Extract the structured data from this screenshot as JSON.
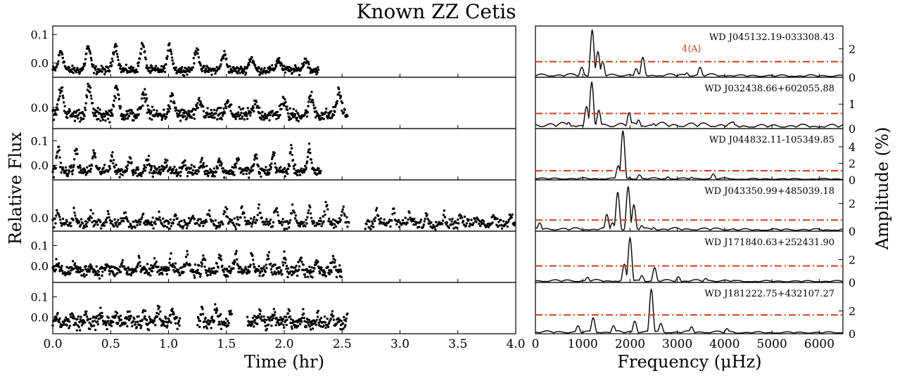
{
  "title": "Known ZZ Cetis",
  "left_ylabel": "Relative Flux",
  "right_ylabel": "Amplitude (%)",
  "chart_data": [
    {
      "type": "scatter",
      "name": "light curves",
      "xlabel": "Time (hr)",
      "xlim": [
        0.0,
        4.0
      ],
      "xticks": [
        0.0,
        0.5,
        1.0,
        1.5,
        2.0,
        2.5,
        3.0,
        3.5,
        4.0
      ],
      "xtick_labels": [
        "0.0",
        "0.5",
        "1.0",
        "1.5",
        "2.0",
        "2.5",
        "3.0",
        "3.5",
        "4.0"
      ],
      "panels": [
        {
          "ylim": [
            -0.05,
            0.13
          ],
          "yticks": [
            0.0,
            0.1
          ],
          "ytick_labels": [
            "0.0",
            "0.1"
          ],
          "t_end": 2.3,
          "period_hr": 0.235,
          "amp": 0.09,
          "noise": 0.012
        },
        {
          "ylim": [
            -0.07,
            0.1
          ],
          "yticks": [
            0.0
          ],
          "ytick_labels": [
            "0.0"
          ],
          "t_end": 2.55,
          "period_hr": 0.24,
          "amp": 0.09,
          "noise": 0.018
        },
        {
          "ylim": [
            -0.06,
            0.15
          ],
          "yticks": [
            0.0,
            0.1
          ],
          "ytick_labels": [
            "0.0",
            "0.1"
          ],
          "t_end": 2.32,
          "period_hr": 0.155,
          "amp": 0.1,
          "noise": 0.018
        },
        {
          "ylim": [
            -0.06,
            0.17
          ],
          "yticks": [
            0.0
          ],
          "ytick_labels": [
            "0.0"
          ],
          "t_end": 4.0,
          "gap": [
            2.56,
            2.7
          ],
          "period_hr": 0.145,
          "amp": 0.08,
          "noise": 0.02
        },
        {
          "ylim": [
            -0.08,
            0.17
          ],
          "yticks": [
            0.0,
            0.1
          ],
          "ytick_labels": [
            "0.0",
            "0.1"
          ],
          "t_end": 2.5,
          "period_hr": 0.14,
          "amp": 0.08,
          "noise": 0.025
        },
        {
          "ylim": [
            -0.08,
            0.17
          ],
          "yticks": [
            0.0,
            0.1
          ],
          "ytick_labels": [
            "0.0",
            "0.1"
          ],
          "t_end": 2.55,
          "period_hr": 0.125,
          "amp": 0.07,
          "noise": 0.03
        }
      ]
    },
    {
      "type": "line",
      "name": "periodograms",
      "xlabel": "Frequency (μHz)",
      "xlim": [
        0,
        6500
      ],
      "xticks": [
        0,
        1000,
        2000,
        3000,
        4000,
        5000,
        6000
      ],
      "xtick_labels": [
        "0",
        "1000",
        "2000",
        "3000",
        "4000",
        "5000",
        "6000"
      ],
      "threshold_label": "4⟨A⟩",
      "panels": [
        {
          "star": "WD J045132.19-033308.43",
          "ylim": [
            0,
            3.6
          ],
          "yticks": [
            0,
            2
          ],
          "ytick_labels": [
            "0",
            "2"
          ],
          "threshold": 1.1,
          "peaks": [
            [
              1200,
              3.3
            ],
            [
              1320,
              1.8
            ],
            [
              1420,
              1.1
            ],
            [
              980,
              0.7
            ],
            [
              2270,
              1.4
            ],
            [
              2130,
              0.6
            ],
            [
              3480,
              0.7
            ],
            [
              3200,
              0.3
            ],
            [
              3750,
              0.25
            ]
          ]
        },
        {
          "star": "WD J032438.66+602055.88",
          "ylim": [
            0,
            2.1
          ],
          "yticks": [
            0,
            1
          ],
          "ytick_labels": [
            "0",
            "1"
          ],
          "threshold": 0.62,
          "peaks": [
            [
              1190,
              1.9
            ],
            [
              1080,
              0.9
            ],
            [
              1340,
              0.75
            ],
            [
              1980,
              0.65
            ],
            [
              2180,
              0.35
            ],
            [
              2500,
              0.2
            ],
            [
              700,
              0.25
            ]
          ]
        },
        {
          "star": "WD J044832.11-105349.85",
          "ylim": [
            0,
            6.2
          ],
          "yticks": [
            0,
            2,
            4
          ],
          "ytick_labels": [
            "0",
            "2",
            "4"
          ],
          "threshold": 1.1,
          "peaks": [
            [
              1850,
              5.9
            ],
            [
              1750,
              1.7
            ],
            [
              2200,
              0.6
            ],
            [
              3760,
              0.7
            ],
            [
              2800,
              0.35
            ],
            [
              3300,
              0.3
            ]
          ]
        },
        {
          "star": "WD J043350.99+485039.18",
          "ylim": [
            0,
            3.7
          ],
          "yticks": [
            0,
            2
          ],
          "ytick_labels": [
            "0",
            "2"
          ],
          "threshold": 0.8,
          "peaks": [
            [
              1960,
              3.2
            ],
            [
              1740,
              2.8
            ],
            [
              2080,
              1.9
            ],
            [
              1510,
              1.2
            ],
            [
              1630,
              0.6
            ],
            [
              2250,
              0.4
            ],
            [
              90,
              0.6
            ],
            [
              2500,
              0.25
            ]
          ]
        },
        {
          "star": "WD J171840.63+252431.90",
          "ylim": [
            0,
            4.5
          ],
          "yticks": [
            0,
            2
          ],
          "ytick_labels": [
            "0",
            "2"
          ],
          "threshold": 1.45,
          "peaks": [
            [
              2000,
              3.9
            ],
            [
              1880,
              1.6
            ],
            [
              2520,
              1.3
            ],
            [
              2250,
              0.6
            ],
            [
              3020,
              0.5
            ],
            [
              3600,
              0.35
            ],
            [
              1100,
              0.45
            ]
          ]
        },
        {
          "star": "WD J181222.75+432107.27",
          "ylim": [
            0,
            4.5
          ],
          "yticks": [
            0,
            2
          ],
          "ytick_labels": [
            "0",
            "2"
          ],
          "threshold": 1.65,
          "peaks": [
            [
              2450,
              3.9
            ],
            [
              1220,
              1.4
            ],
            [
              2100,
              1.1
            ],
            [
              2650,
              0.9
            ],
            [
              900,
              0.7
            ],
            [
              3300,
              0.6
            ],
            [
              4050,
              0.45
            ],
            [
              1650,
              0.7
            ]
          ]
        }
      ]
    }
  ]
}
